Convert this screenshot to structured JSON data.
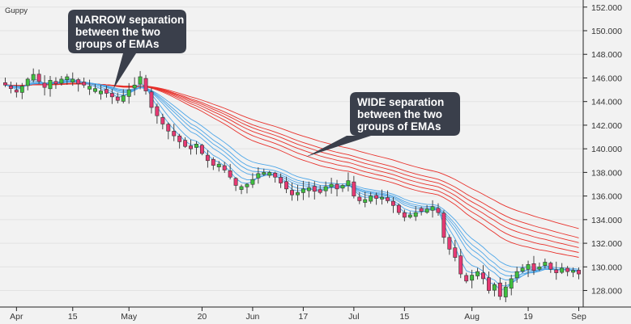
{
  "chart_data": {
    "type": "candlestick",
    "title": "Guppy",
    "colors": {
      "background": "#f2f2f2",
      "up_candle": "#3fbf3f",
      "down_candle": "#e63973",
      "fast_ema": "#4da6e8",
      "slow_ema": "#e8302a",
      "callout": "#3a3f4b",
      "callout_text": "#ffffff"
    },
    "ylim": [
      126.6,
      152.6
    ],
    "y_ticks": [
      "152.000",
      "150.000",
      "148.000",
      "146.000",
      "144.000",
      "142.000",
      "140.000",
      "138.000",
      "136.000",
      "134.000",
      "132.000",
      "130.000",
      "128.000"
    ],
    "x_ticks": [
      {
        "label": "Apr",
        "index": 2
      },
      {
        "label": "15",
        "index": 12
      },
      {
        "label": "May",
        "index": 22
      },
      {
        "label": "20",
        "index": 35
      },
      {
        "label": "Jun",
        "index": 44
      },
      {
        "label": "17",
        "index": 53
      },
      {
        "label": "Jul",
        "index": 62
      },
      {
        "label": "15",
        "index": 71
      },
      {
        "label": "Aug",
        "index": 83
      },
      {
        "label": "19",
        "index": 93
      },
      {
        "label": "Sep",
        "index": 102
      }
    ],
    "series_info": {
      "candles": "Daily OHLC",
      "fast_emas": 6,
      "slow_emas": 6
    },
    "close_values": [
      145.4,
      145.1,
      144.8,
      145.3,
      145.9,
      146.3,
      145.7,
      145.2,
      145.8,
      145.5,
      145.9,
      146.1,
      145.9,
      145.5,
      145.4,
      145.3,
      145.1,
      144.9,
      144.7,
      144.4,
      144.1,
      144.5,
      145.0,
      145.4,
      146.1,
      144.9,
      143.5,
      142.8,
      142.1,
      141.5,
      141.1,
      140.6,
      140.2,
      140.0,
      140.4,
      139.6,
      139.0,
      138.6,
      138.7,
      138.2,
      137.6,
      136.9,
      136.8,
      137.0,
      137.4,
      137.9,
      138.0,
      138.0,
      137.6,
      137.1,
      136.6,
      136.1,
      136.3,
      136.6,
      136.7,
      136.4,
      136.3,
      136.8,
      137.0,
      136.6,
      136.9,
      137.3,
      136.0,
      135.6,
      135.7,
      136.0,
      135.8,
      135.9,
      135.6,
      135.2,
      134.6,
      134.2,
      134.4,
      134.6,
      134.7,
      134.9,
      135.1,
      134.6,
      132.5,
      131.5,
      130.8,
      129.4,
      128.8,
      129.3,
      129.6,
      129.0,
      128.0,
      128.5,
      127.5,
      128.3,
      129.0,
      129.6,
      129.9,
      130.2,
      129.7,
      130.0,
      130.4,
      129.8,
      129.5,
      129.9,
      129.6,
      129.7,
      129.4
    ],
    "ema_periods": {
      "fast": [
        3,
        5,
        8,
        10,
        12,
        15
      ],
      "slow": [
        30,
        35,
        40,
        45,
        50,
        60
      ]
    },
    "annotations": [
      {
        "line1": "NARROW separation",
        "line2": "between the two",
        "line3": "groups of EMAs"
      },
      {
        "line1": "WIDE separation",
        "line2": "between the two",
        "line3": "groups of EMAs"
      }
    ]
  }
}
